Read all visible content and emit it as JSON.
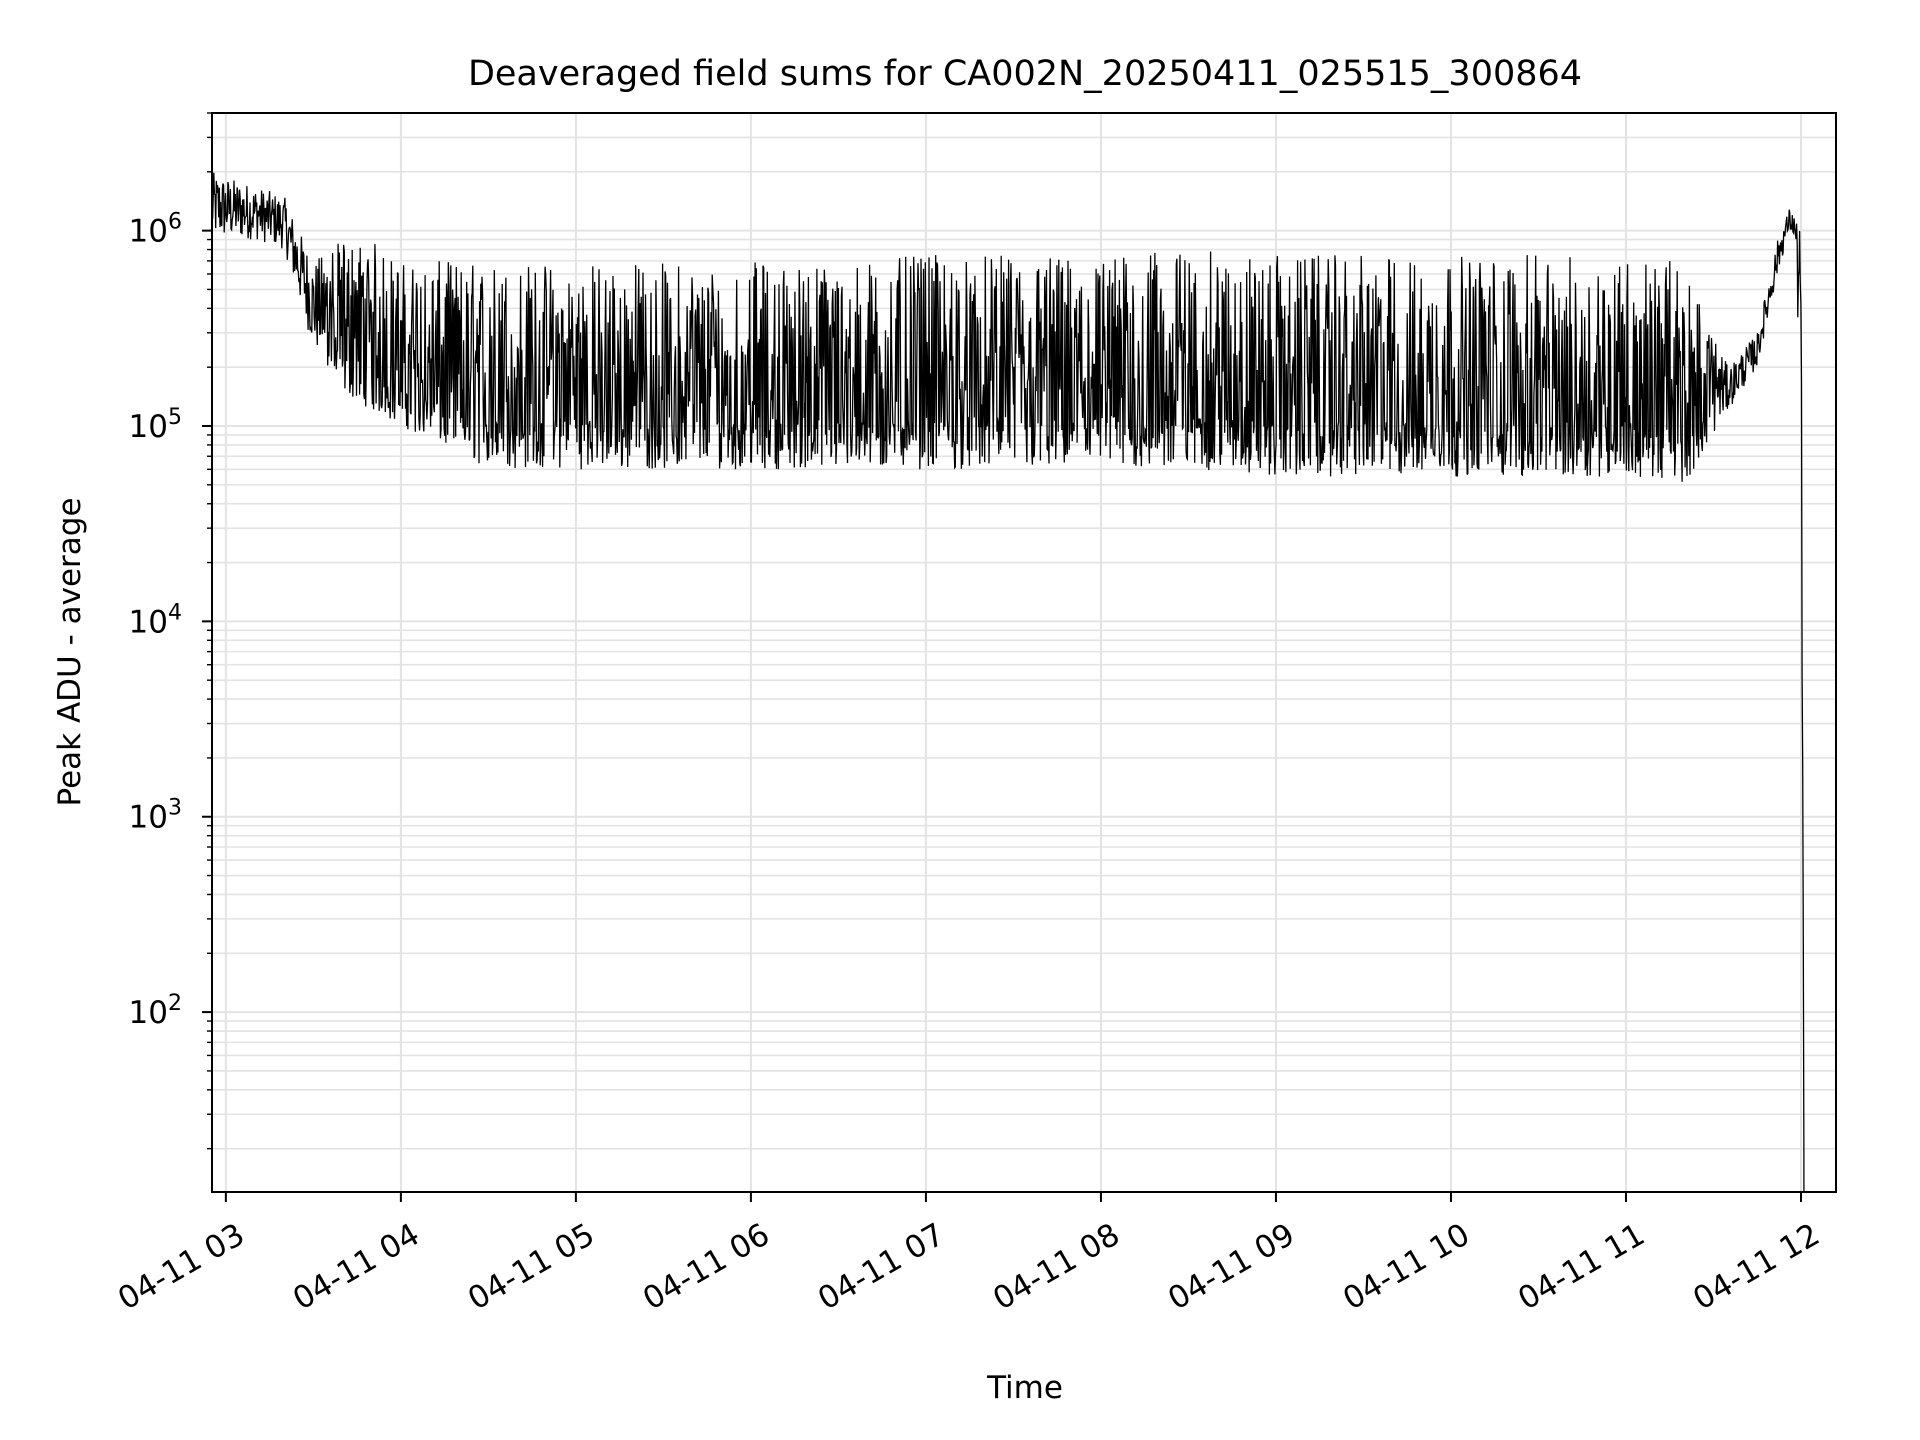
{
  "chart_data": {
    "type": "line",
    "title": "Deaveraged field sums for CA002N_20250411_025515_300864",
    "xlabel": "Time",
    "ylabel": "Peak ADU - average",
    "yscale": "log",
    "ylim": [
      12,
      4000000
    ],
    "xlim": [
      "2025-04-11T02:55:15",
      "2025-04-11T12:12:00"
    ],
    "grid": true,
    "line_color": "#000000",
    "x_ticks": [
      {
        "value": "2025-04-11T03:00",
        "label": "04-11 03"
      },
      {
        "value": "2025-04-11T04:00",
        "label": "04-11 04"
      },
      {
        "value": "2025-04-11T05:00",
        "label": "04-11 05"
      },
      {
        "value": "2025-04-11T06:00",
        "label": "04-11 06"
      },
      {
        "value": "2025-04-11T07:00",
        "label": "04-11 07"
      },
      {
        "value": "2025-04-11T08:00",
        "label": "04-11 08"
      },
      {
        "value": "2025-04-11T09:00",
        "label": "04-11 09"
      },
      {
        "value": "2025-04-11T10:00",
        "label": "04-11 10"
      },
      {
        "value": "2025-04-11T11:00",
        "label": "04-11 11"
      },
      {
        "value": "2025-04-11T12:00",
        "label": "04-11 12"
      }
    ],
    "y_ticks": [
      {
        "value": 100,
        "base": "10",
        "exp": "2"
      },
      {
        "value": 1000,
        "base": "10",
        "exp": "3"
      },
      {
        "value": 10000,
        "base": "10",
        "exp": "4"
      },
      {
        "value": 100000,
        "base": "10",
        "exp": "5"
      },
      {
        "value": 1000000,
        "base": "10",
        "exp": "6"
      }
    ],
    "series": [
      {
        "envelope": {
          "x": [
            "2025-04-11T02:55:15",
            "2025-04-11T03:10",
            "2025-04-11T03:20",
            "2025-04-11T03:30",
            "2025-04-11T03:40",
            "2025-04-11T03:50",
            "2025-04-11T04:00",
            "2025-04-11T04:30",
            "2025-04-11T05:00",
            "2025-04-11T05:30",
            "2025-04-11T06:00",
            "2025-04-11T06:30",
            "2025-04-11T07:00",
            "2025-04-11T07:30",
            "2025-04-11T08:00",
            "2025-04-11T08:30",
            "2025-04-11T09:00",
            "2025-04-11T09:30",
            "2025-04-11T10:00",
            "2025-04-11T10:30",
            "2025-04-11T11:00",
            "2025-04-11T11:20",
            "2025-04-11T11:35",
            "2025-04-11T11:45",
            "2025-04-11T11:52",
            "2025-04-11T11:56",
            "2025-04-11T11:58",
            "2025-04-11T12:00",
            "2025-04-11T12:01"
          ],
          "low": [
            900000,
            900000,
            800000,
            250000,
            150000,
            120000,
            100000,
            60000,
            60000,
            60000,
            60000,
            60000,
            60000,
            60000,
            60000,
            60000,
            55000,
            55000,
            55000,
            55000,
            55000,
            50000,
            120000,
            200000,
            600000,
            1000000,
            900000,
            100000,
            14
          ],
          "high": [
            2000000,
            1700000,
            1500000,
            700000,
            900000,
            900000,
            700000,
            700000,
            700000,
            700000,
            700000,
            700000,
            750000,
            750000,
            750000,
            800000,
            750000,
            750000,
            750000,
            750000,
            750000,
            700000,
            200000,
            300000,
            900000,
            1300000,
            1200000,
            1000000,
            30
          ]
        }
      }
    ]
  }
}
